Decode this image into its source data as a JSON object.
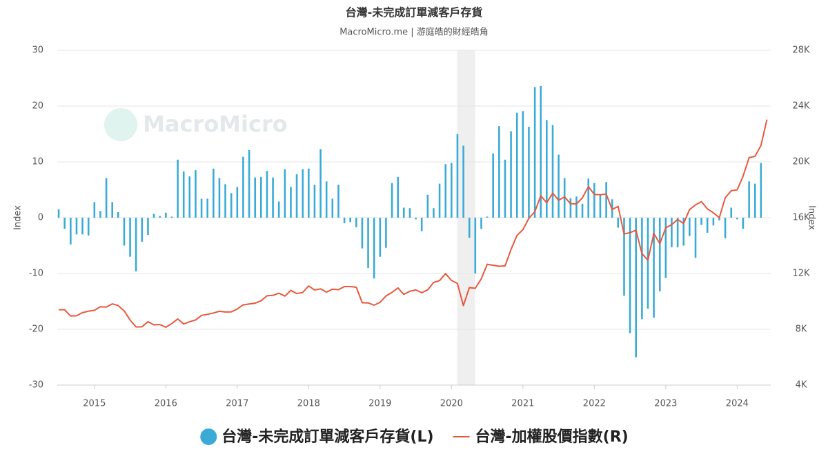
{
  "chart_data": {
    "type": "bar-line",
    "title": "台灣-未完成訂單減客戶存貨",
    "subtitle": "MacroMicro.me | 游庭皓的財經皓角",
    "watermark": "MacroMicro",
    "ylabel": "Index",
    "y2label": "Index",
    "xlim": [
      2014.48,
      2024.47
    ],
    "xticks": [
      2015,
      2016,
      2017,
      2018,
      2019,
      2020,
      2021,
      2022,
      2023,
      2024
    ],
    "ylim": [
      -30,
      30
    ],
    "yticks": [
      30,
      20,
      10,
      0,
      -10,
      -20,
      -30
    ],
    "y2lim": [
      4000,
      28000
    ],
    "y2ticks": [
      {
        "value": 28000,
        "label": "28K"
      },
      {
        "value": 24000,
        "label": "24K"
      },
      {
        "value": 20000,
        "label": "20K"
      },
      {
        "value": 16000,
        "label": "16K"
      },
      {
        "value": 12000,
        "label": "12K"
      },
      {
        "value": 8000,
        "label": "8K"
      },
      {
        "value": 4000,
        "label": "4K"
      }
    ],
    "grid": true,
    "legend": "bottom",
    "shade": [
      2020.08,
      2020.33
    ],
    "shade_color": "#efefef",
    "x": [
      2014.5,
      2014.583,
      2014.667,
      2014.75,
      2014.833,
      2014.917,
      2015,
      2015.083,
      2015.167,
      2015.25,
      2015.333,
      2015.417,
      2015.5,
      2015.583,
      2015.667,
      2015.75,
      2015.833,
      2015.917,
      2016,
      2016.083,
      2016.167,
      2016.25,
      2016.333,
      2016.417,
      2016.5,
      2016.583,
      2016.667,
      2016.75,
      2016.833,
      2016.917,
      2017,
      2017.083,
      2017.167,
      2017.25,
      2017.333,
      2017.417,
      2017.5,
      2017.583,
      2017.667,
      2017.75,
      2017.833,
      2017.917,
      2018,
      2018.083,
      2018.167,
      2018.25,
      2018.333,
      2018.417,
      2018.5,
      2018.583,
      2018.667,
      2018.75,
      2018.833,
      2018.917,
      2019,
      2019.083,
      2019.167,
      2019.25,
      2019.333,
      2019.417,
      2019.5,
      2019.583,
      2019.667,
      2019.75,
      2019.833,
      2019.917,
      2020,
      2020.083,
      2020.167,
      2020.25,
      2020.333,
      2020.417,
      2020.5,
      2020.583,
      2020.667,
      2020.75,
      2020.833,
      2020.917,
      2021,
      2021.083,
      2021.167,
      2021.25,
      2021.333,
      2021.417,
      2021.5,
      2021.583,
      2021.667,
      2021.75,
      2021.833,
      2021.917,
      2022,
      2022.083,
      2022.167,
      2022.25,
      2022.333,
      2022.417,
      2022.5,
      2022.583,
      2022.667,
      2022.75,
      2022.833,
      2022.917,
      2023,
      2023.083,
      2023.167,
      2023.25,
      2023.333,
      2023.417,
      2023.5,
      2023.583,
      2023.667,
      2023.75,
      2023.833,
      2023.917,
      2024,
      2024.083,
      2024.167,
      2024.25,
      2024.333,
      2024.417
    ],
    "series": [
      {
        "name": "台灣-未完成訂單減客戶存貨(L)",
        "type": "bar",
        "axis": "y",
        "color": "#3aabd6",
        "values": [
          1.5,
          -2,
          -4.8,
          -3,
          -3,
          -3.2,
          2.8,
          1.2,
          7.1,
          2.8,
          1,
          -5,
          -7,
          -9.6,
          -4.3,
          -3.1,
          0.7,
          0.3,
          0.9,
          0.2,
          10.4,
          8.3,
          7.4,
          8.5,
          3.4,
          3.4,
          8.8,
          7.1,
          6,
          4.4,
          5.5,
          10.9,
          12.1,
          7.2,
          7.3,
          8.4,
          7.2,
          2.9,
          8.7,
          5.5,
          7.8,
          8.7,
          8.8,
          5.9,
          12.3,
          6.5,
          3.4,
          5.9,
          -1,
          -0.8,
          -1.7,
          -5.5,
          -9,
          -10.9,
          -7,
          -5.4,
          6.2,
          7.3,
          1.8,
          1.7,
          -0.3,
          -2.4,
          4.1,
          1.7,
          6.1,
          9.6,
          9.8,
          15,
          12.9,
          -3.6,
          -10,
          -2,
          0.2,
          11.5,
          16.4,
          10.4,
          15.5,
          18.8,
          19.1,
          16.3,
          23.4,
          23.6,
          17.5,
          16.6,
          11.3,
          7.1,
          3.5,
          3.8,
          2.5,
          7,
          6.2,
          4.1,
          6.4,
          3.3,
          -1.8,
          -14,
          -20.7,
          -25,
          -18.2,
          -16.3,
          -17.9,
          -13.2,
          -10.8,
          -5.3,
          -5.3,
          -5,
          -3.3,
          -7.2,
          -1.3,
          -2.7,
          -1.4,
          -0.5,
          -3.7,
          1.8,
          -0.3,
          -2,
          6.5,
          6.1,
          9.8,
          null
        ]
      },
      {
        "name": "台灣-加權股價指數(R)",
        "type": "line",
        "axis": "y2",
        "color": "#e8573c",
        "values": [
          9400,
          9400,
          8950,
          8970,
          9190,
          9300,
          9360,
          9620,
          9590,
          9820,
          9700,
          9320,
          8660,
          8170,
          8180,
          8550,
          8320,
          8340,
          8150,
          8410,
          8740,
          8380,
          8540,
          8670,
          9000,
          9070,
          9170,
          9290,
          9240,
          9250,
          9450,
          9750,
          9810,
          9870,
          10040,
          10400,
          10430,
          10590,
          10380,
          10790,
          10560,
          10640,
          11100,
          10820,
          10900,
          10660,
          10880,
          10840,
          11060,
          11060,
          11010,
          9900,
          9890,
          9730,
          9930,
          10390,
          10640,
          10970,
          10500,
          10730,
          10820,
          10620,
          10830,
          11360,
          11490,
          11990,
          11500,
          11290,
          9700,
          10990,
          10940,
          11620,
          12660,
          12590,
          12520,
          12550,
          13720,
          14730,
          15140,
          15950,
          16430,
          17570,
          17070,
          17760,
          17250,
          17490,
          17000,
          16990,
          17430,
          18220,
          17670,
          17650,
          17690,
          16590,
          16810,
          14830,
          14930,
          15100,
          13420,
          12950,
          14880,
          14140,
          15270,
          15500,
          15870,
          15580,
          16580,
          16920,
          17150,
          16630,
          16350,
          16000,
          17430,
          17930,
          18000,
          18970,
          20300,
          20400,
          21170,
          23030
        ]
      }
    ]
  }
}
